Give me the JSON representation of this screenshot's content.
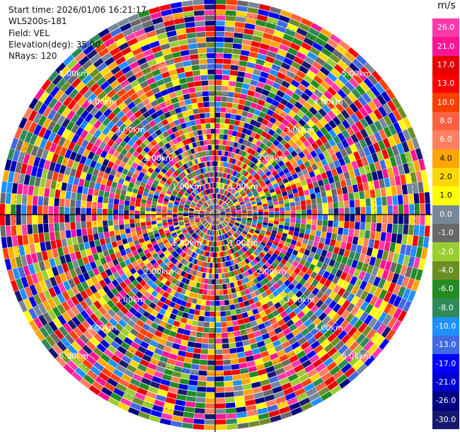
{
  "info": {
    "start_time": "Start time: 2026/01/06 16:21:17",
    "instrument": "WLS200s-181",
    "field": "Field: VEL",
    "elevation": "Elevation(deg): 35.00",
    "nrays": "NRays: 120"
  },
  "colorbar": {
    "unit": "m/s",
    "labels": [
      "26.0",
      "21.0",
      "17.0",
      "13.0",
      "10.0",
      "8.0",
      "6.0",
      "4.0",
      "2.0",
      "1.0",
      "0.0",
      "-1.0",
      "-2.0",
      "-4.0",
      "-6.0",
      "-8.0",
      "-10.0",
      "-13.0",
      "-17.0",
      "-21.0",
      "-26.0",
      "-30.0"
    ],
    "colors": [
      "#ff3aa8",
      "#ff1493",
      "#e60000",
      "#ff0000",
      "#ff3f00",
      "#ff6040",
      "#ff8060",
      "#ffa500",
      "#ffd700",
      "#ffff00",
      "#778899",
      "#696969",
      "#9acd32",
      "#6b8e23",
      "#228b22",
      "#2e8b57",
      "#1e90ff",
      "#4169e1",
      "#0000ff",
      "#0000cd",
      "#000080",
      "#191970"
    ]
  },
  "chart_data": {
    "type": "heatmap",
    "subtype": "PPI polar scan",
    "field": "VEL",
    "unit": "m/s",
    "nrays": 120,
    "elevation_deg": 35.0,
    "range_ring_labels": [
      "1.00km",
      "2.00km",
      "3.00km",
      "4.00km",
      "5.00km"
    ],
    "value_range": [
      -30.0,
      26.0
    ]
  }
}
